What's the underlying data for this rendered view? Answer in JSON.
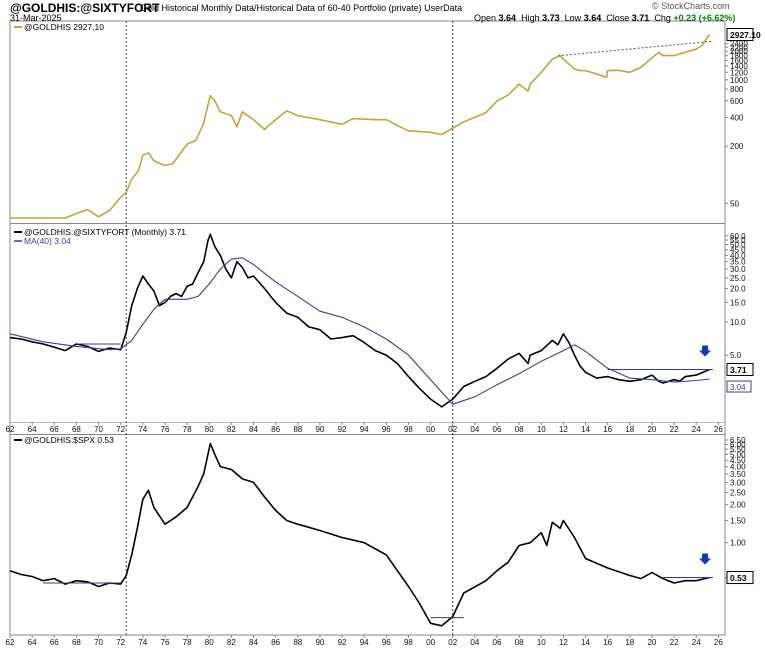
{
  "header": {
    "symbol": "@GOLDHIS:@SIXTYFORT",
    "description": "Gold Historical Monthly Data/Historical Data of 60-40 Portfolio (private)  UserData",
    "date": "31-Mar-2025",
    "open_label": "Open",
    "open": "3.64",
    "high_label": "High",
    "high": "3.73",
    "low_label": "Low",
    "low": "3.64",
    "close_label": "Close",
    "close": "3.71",
    "chg_label": "Chg",
    "chg": "+0.23 (+6.62%)",
    "credit": "© StockCharts.com"
  },
  "colors": {
    "gold": "#c9a33a",
    "black": "#000000",
    "ma": "#3b3f99",
    "hline": "#2f3a90",
    "arrow": "#1034c8"
  },
  "chart_data": [
    {
      "type": "line",
      "legend": "@GOLDHIS 2927.10",
      "last_value_label": "2927.10",
      "scale": "log",
      "ylim": [
        35,
        3600
      ],
      "y_ticks": [
        "2400",
        "2200",
        "2000",
        "1800",
        "1600",
        "1400",
        "1200",
        "1000",
        "800",
        "600",
        "400",
        "200",
        "50"
      ],
      "series": [
        {
          "name": "@GOLDHIS",
          "color": "#c9a33a",
          "x": [
            1962,
            1967,
            1968,
            1969,
            1970,
            1971,
            1972,
            1972.5,
            1973,
            1973.6,
            1974,
            1974.5,
            1975,
            1976,
            1976.7,
            1977,
            1978,
            1978.8,
            1979.5,
            1979.9,
            1980.1,
            1980.5,
            1981,
            1982,
            1982.5,
            1983,
            1984,
            1985,
            1985.3,
            1986,
            1987,
            1988,
            1990,
            1992,
            1993,
            1995,
            1996,
            1997,
            1998,
            2000,
            2001,
            2002,
            2003,
            2005,
            2006,
            2007,
            2008,
            2008.8,
            2009,
            2010,
            2011,
            2011.7,
            2012,
            2013,
            2013.5,
            2014,
            2015,
            2015.9,
            2016,
            2017,
            2018,
            2019,
            2020,
            2020.6,
            2021,
            2022,
            2023,
            2024,
            2024.5,
            2025.2
          ],
          "y": [
            35,
            35,
            39,
            43,
            36,
            42,
            58,
            65,
            90,
            110,
            160,
            170,
            140,
            125,
            130,
            145,
            210,
            230,
            350,
            550,
            680,
            600,
            460,
            420,
            320,
            460,
            380,
            300,
            325,
            380,
            470,
            420,
            380,
            340,
            390,
            380,
            380,
            330,
            290,
            280,
            265,
            310,
            360,
            450,
            600,
            690,
            900,
            760,
            900,
            1200,
            1650,
            1800,
            1650,
            1300,
            1250,
            1250,
            1150,
            1060,
            1250,
            1260,
            1200,
            1350,
            1700,
            1950,
            1800,
            1800,
            1950,
            2100,
            2300,
            3000
          ]
        }
      ],
      "trendline": {
        "style": "dotted",
        "from": [
          2011.5,
          1790
        ],
        "to": [
          2025.5,
          2550
        ]
      }
    },
    {
      "type": "line",
      "legend": "@GOLDHIS:@SIXTYFORT (Monthly) 3.71",
      "ma_legend": "MA(40) 3.04",
      "last_value_label": "3.71",
      "ma_last_label": "3.04",
      "scale": "log",
      "ylim": [
        1.35,
        65
      ],
      "y_ticks": [
        "60.0",
        "55.0",
        "50.0",
        "45.0",
        "40.0",
        "35.0",
        "30.0",
        "25.0",
        "20.0",
        "15.0",
        "10.0",
        "5.0"
      ],
      "series": [
        {
          "name": "@GOLDHIS:@SIXTYFORT",
          "color": "#000000",
          "x": [
            1962,
            1963,
            1964,
            1965,
            1966,
            1967,
            1968,
            1969,
            1970,
            1971,
            1972,
            1972.5,
            1973,
            1973.5,
            1974,
            1974.5,
            1975,
            1975.5,
            1976,
            1976.5,
            1977,
            1977.5,
            1978,
            1978.5,
            1979,
            1979.5,
            1979.9,
            1980.1,
            1980.5,
            1981,
            1981.5,
            1982,
            1982.5,
            1983,
            1983.5,
            1984,
            1985,
            1986,
            1987,
            1988,
            1989,
            1990,
            1991,
            1992,
            1993,
            1994,
            1995,
            1996,
            1997,
            1998,
            1999,
            2000,
            2001,
            2002,
            2003,
            2004,
            2005,
            2006,
            2007,
            2008,
            2008.8,
            2009,
            2010,
            2011,
            2011.5,
            2012,
            2012.5,
            2013,
            2013.5,
            2014,
            2015,
            2016,
            2017,
            2018,
            2019,
            2020,
            2020.6,
            2021,
            2022,
            2022.5,
            2023,
            2024,
            2025.2
          ],
          "y": [
            7.2,
            7.0,
            6.6,
            6.3,
            5.9,
            5.5,
            6.3,
            6.0,
            5.4,
            5.8,
            5.6,
            8.0,
            14,
            20,
            26,
            22,
            19,
            14,
            15,
            17,
            18,
            17,
            21,
            22,
            28,
            35,
            55,
            62,
            48,
            40,
            30,
            25,
            35,
            31,
            25,
            26,
            20,
            15,
            12,
            11,
            9.0,
            8.5,
            7.0,
            7.2,
            7.5,
            6.5,
            5.5,
            5.0,
            4.2,
            3.2,
            2.5,
            2.0,
            1.7,
            2.0,
            2.6,
            2.9,
            3.2,
            3.8,
            4.6,
            5.2,
            4.2,
            5.0,
            5.5,
            6.8,
            6.2,
            7.8,
            6.5,
            5.0,
            4.0,
            3.5,
            3.1,
            3.2,
            3.0,
            2.9,
            3.0,
            3.3,
            2.9,
            2.8,
            3.0,
            2.9,
            3.2,
            3.3,
            3.71
          ]
        },
        {
          "name": "MA(40)",
          "color": "#3b3f99",
          "x": [
            1962,
            1965,
            1968,
            1971,
            1972,
            1973,
            1974,
            1975,
            1976,
            1978,
            1979,
            1980,
            1981,
            1982,
            1983,
            1984,
            1986,
            1988,
            1990,
            1992,
            1994,
            1996,
            1998,
            2000,
            2002,
            2004,
            2006,
            2008,
            2010,
            2012,
            2013,
            2014,
            2016,
            2018,
            2020,
            2022,
            2024,
            2025.2
          ],
          "y": [
            7.8,
            6.6,
            6.0,
            5.6,
            5.7,
            6.8,
            9.5,
            13,
            16,
            16,
            17,
            22,
            30,
            37,
            38,
            33,
            23,
            17,
            12.5,
            11,
            9.0,
            7.0,
            5.0,
            3.0,
            1.8,
            2.1,
            2.7,
            3.4,
            4.4,
            5.5,
            6.2,
            5.4,
            3.8,
            3.1,
            3.0,
            2.85,
            2.95,
            3.04
          ]
        }
      ],
      "levels": [
        {
          "from": 1968,
          "to": 1972,
          "y": 6.3
        },
        {
          "from": 2016,
          "to": 2025.5,
          "y": 3.71
        }
      ],
      "x_ticks": [
        "62",
        "64",
        "66",
        "68",
        "70",
        "72",
        "74",
        "76",
        "78",
        "80",
        "82",
        "84",
        "86",
        "88",
        "90",
        "92",
        "94",
        "96",
        "98",
        "00",
        "02",
        "04",
        "06",
        "08",
        "10",
        "12",
        "14",
        "16",
        "18",
        "20",
        "22",
        "24",
        "26"
      ]
    },
    {
      "type": "line",
      "legend": "@GOLDHIS:$SPX 0.53",
      "last_value_label": "0.53",
      "scale": "log",
      "ylim": [
        0.2,
        6.5
      ],
      "y_ticks": [
        "6.50",
        "6.00",
        "5.50",
        "5.00",
        "4.50",
        "4.00",
        "3.50",
        "3.00",
        "2.50",
        "2.00",
        "1.50",
        "1.00",
        "0.53"
      ],
      "series": [
        {
          "name": "@GOLDHIS:$SPX",
          "color": "#000000",
          "x": [
            1962,
            1963,
            1964,
            1965,
            1966,
            1967,
            1968,
            1969,
            1970,
            1971,
            1972,
            1972.5,
            1973,
            1973.5,
            1974,
            1974.5,
            1975,
            1976,
            1977,
            1978,
            1979,
            1979.5,
            1980.1,
            1980.5,
            1981,
            1982,
            1983,
            1984,
            1985,
            1986,
            1987,
            1988,
            1990,
            1992,
            1994,
            1996,
            1997,
            1998,
            1999,
            2000,
            2001,
            2002,
            2003,
            2005,
            2006,
            2007,
            2008,
            2009,
            2010,
            2010.5,
            2011,
            2011.7,
            2012,
            2013,
            2014,
            2016,
            2018,
            2019,
            2020,
            2021,
            2022,
            2023,
            2024,
            2025.2
          ],
          "y": [
            0.6,
            0.56,
            0.54,
            0.5,
            0.52,
            0.47,
            0.5,
            0.49,
            0.45,
            0.48,
            0.47,
            0.55,
            0.8,
            1.3,
            2.2,
            2.6,
            1.9,
            1.4,
            1.6,
            1.9,
            2.8,
            3.5,
            6.1,
            5.0,
            4.0,
            3.8,
            3.2,
            3.0,
            2.3,
            1.8,
            1.5,
            1.4,
            1.25,
            1.1,
            1.0,
            0.8,
            0.6,
            0.45,
            0.33,
            0.23,
            0.22,
            0.26,
            0.4,
            0.5,
            0.6,
            0.7,
            0.95,
            1.0,
            1.2,
            0.95,
            1.45,
            1.3,
            1.5,
            1.1,
            0.75,
            0.63,
            0.55,
            0.52,
            0.58,
            0.52,
            0.48,
            0.5,
            0.5,
            0.53
          ]
        }
      ],
      "levels": [
        {
          "from": 1965,
          "to": 1972,
          "y": 0.48
        },
        {
          "from": 2000,
          "to": 2003,
          "y": 0.255
        },
        {
          "from": 2021,
          "to": 2025.5,
          "y": 0.53
        }
      ],
      "x_ticks": [
        "62",
        "64",
        "66",
        "68",
        "70",
        "72",
        "74",
        "76",
        "78",
        "80",
        "82",
        "84",
        "86",
        "88",
        "90",
        "92",
        "94",
        "96",
        "98",
        "00",
        "02",
        "04",
        "06",
        "08",
        "10",
        "12",
        "14",
        "16",
        "18",
        "20",
        "22",
        "24",
        "26"
      ]
    }
  ],
  "markers": {
    "vertical_lines_at": [
      1972.5,
      2002
    ]
  }
}
